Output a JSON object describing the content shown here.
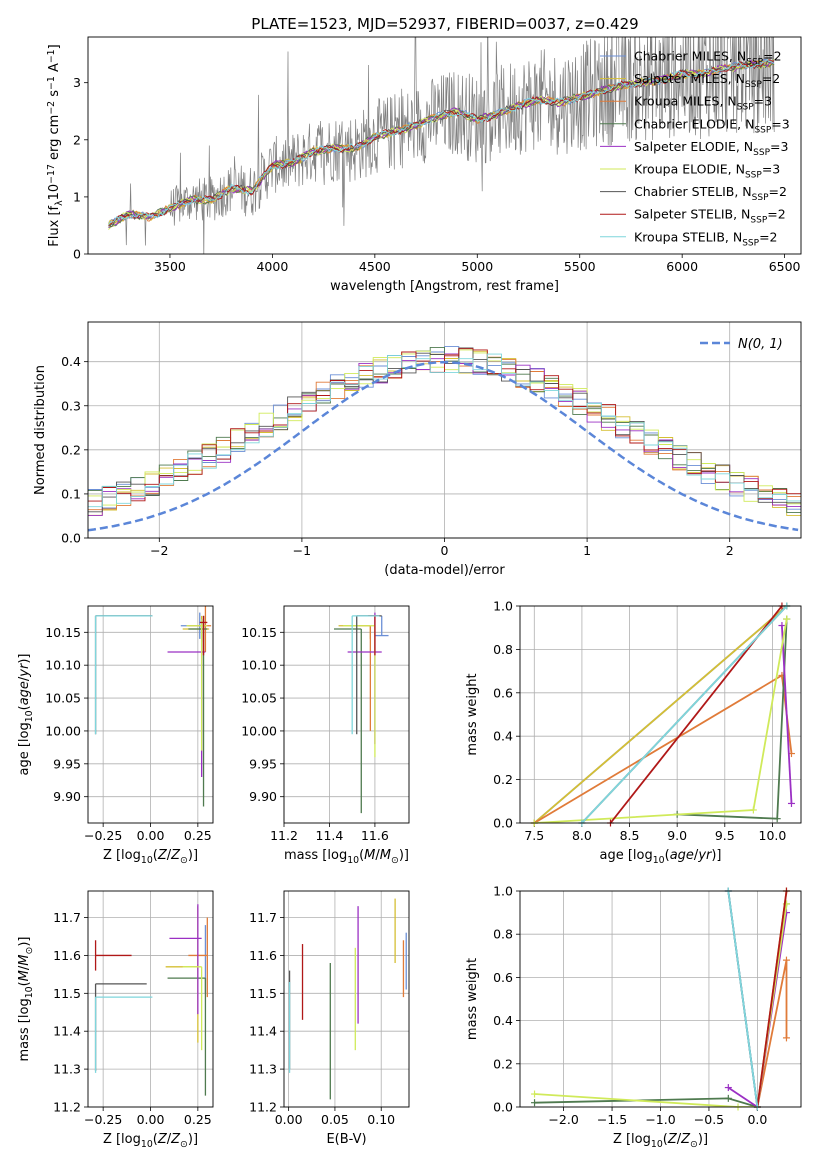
{
  "title": "PLATE=1523, MJD=52937, FIBERID=0037, z=0.429",
  "series": [
    {
      "name": "Chabrier MILES, N<sub>SSP</sub>=2",
      "color": "#6b8fd6"
    },
    {
      "name": "Salpeter MILES, N<sub>SSP</sub>=2",
      "color": "#d5bf34"
    },
    {
      "name": "Kroupa MILES, N<sub>SSP</sub>=3",
      "color": "#e07b39"
    },
    {
      "name": "Chabrier ELODIE, N<sub>SSP</sub>=3",
      "color": "#4f7a4f"
    },
    {
      "name": "Salpeter ELODIE, N<sub>SSP</sub>=3",
      "color": "#9b30c4"
    },
    {
      "name": "Kroupa ELODIE, N<sub>SSP</sub>=3",
      "color": "#d0ea5a"
    },
    {
      "name": "Chabrier STELIB, N<sub>SSP</sub>=2",
      "color": "#555555"
    },
    {
      "name": "Salpeter STELIB, N<sub>SSP</sub>=2",
      "color": "#b01818"
    },
    {
      "name": "Kroupa STELIB, N<sub>SSP</sub>=2",
      "color": "#7fd6dc"
    }
  ],
  "chart_data": [
    {
      "id": "spectrum",
      "type": "line",
      "xlabel": "wavelength [Angstrom, rest frame]",
      "ylabel": "Flux [f<sub>λ</sub>10<sup>−17</sup> erg cm<sup>−2</sup> s<sup>−1</sup> A<sup>−1</sup>]",
      "xlim": [
        3100,
        6580
      ],
      "ylim": [
        0,
        3.8
      ],
      "xticks": [
        3500,
        4000,
        4500,
        5000,
        5500,
        6000,
        6500
      ],
      "yticks": [
        0,
        1,
        2,
        3
      ],
      "continuum_x": [
        3200,
        3300,
        3400,
        3500,
        3600,
        3700,
        3800,
        3900,
        4000,
        4100,
        4200,
        4300,
        4400,
        4500,
        4600,
        4700,
        4800,
        4900,
        5000,
        5100,
        5200,
        5300,
        5400,
        5500,
        5600,
        5700,
        5800,
        5900,
        6000,
        6100,
        6200,
        6300,
        6450
      ],
      "continuum_y": [
        0.5,
        0.7,
        0.65,
        0.8,
        0.95,
        0.95,
        1.15,
        1.1,
        1.55,
        1.6,
        1.8,
        1.85,
        1.85,
        2.05,
        2.15,
        2.25,
        2.4,
        2.5,
        2.35,
        2.45,
        2.6,
        2.7,
        2.65,
        2.75,
        2.85,
        2.95,
        3.0,
        3.05,
        3.15,
        3.15,
        3.25,
        3.3,
        3.35
      ],
      "legend": "upper right"
    },
    {
      "id": "residuals",
      "type": "line",
      "xlabel": "(data-model)/error",
      "ylabel": "Normed distribution",
      "xlim": [
        -2.5,
        2.5
      ],
      "ylim": [
        0,
        0.49
      ],
      "xticks": [
        -2,
        -1,
        0,
        1,
        2
      ],
      "yticks": [
        0.0,
        0.1,
        0.2,
        0.3,
        0.4
      ],
      "legend": "$\\mathcal{N}(0, 1)$",
      "gaussian": {
        "mean": 0,
        "sigma": 1,
        "color": "#5b86d8",
        "style": "dashed"
      },
      "histogram_bin_width": 0.1
    },
    {
      "id": "age_vs_Z",
      "type": "scatter",
      "xlabel": "Z [log<sub>10</sub>(<i>Z</i>/<i>Z</i><sub>⊙</sub>)]",
      "ylabel": "age  [log<sub>10</sub>(<i>age</i>/<i>yr</i>)]",
      "xlim": [
        -0.33,
        0.33
      ],
      "ylim": [
        9.86,
        10.19
      ],
      "xticks": [
        -0.25,
        0.0,
        0.25
      ],
      "yticks": [
        9.9,
        9.95,
        10.0,
        10.05,
        10.1,
        10.15
      ],
      "points": [
        {
          "x": 0.26,
          "y": 10.16,
          "xerr": [
            0.1,
            0.04
          ],
          "yerr": [
            0.02,
            0.02
          ],
          "series": 0
        },
        {
          "x": 0.27,
          "y": 10.155,
          "xerr": [
            0.1,
            0.04
          ],
          "yerr": [
            0.02,
            0.02
          ],
          "series": 1
        },
        {
          "x": 0.29,
          "y": 10.16,
          "xerr": [
            0.09,
            0.03
          ],
          "yerr": [
            0.04,
            0.06
          ],
          "series": 2
        },
        {
          "x": 0.28,
          "y": 10.155,
          "xerr": [
            0.08,
            0.02
          ],
          "yerr": [
            0.27,
            0.02
          ],
          "series": 3
        },
        {
          "x": 0.27,
          "y": 10.12,
          "xerr": [
            0.18,
            0.02
          ],
          "yerr": [
            0.19,
            0.05
          ],
          "series": 4
        },
        {
          "x": 0.27,
          "y": 10.16,
          "xerr": [
            0.08,
            0.03
          ],
          "yerr": [
            0.19,
            0.01
          ],
          "series": 5
        },
        {
          "x": -0.29,
          "y": 10.175,
          "xerr": [
            0.0,
            0.3
          ],
          "yerr": [
            0.18,
            0.0
          ],
          "series": 6
        },
        {
          "x": 0.28,
          "y": 10.165,
          "xerr": [
            0.02,
            0.02
          ],
          "yerr": [
            0.05,
            0.01
          ],
          "series": 7
        },
        {
          "x": -0.29,
          "y": 10.175,
          "xerr": [
            0.0,
            0.3
          ],
          "yerr": [
            0.18,
            0.0
          ],
          "series": 8
        }
      ]
    },
    {
      "id": "age_vs_mass",
      "type": "scatter",
      "xlabel": "mass [log<sub>10</sub>(<i>M</i>/<i>M</i><sub>⊙</sub>)]",
      "ylabel": "",
      "xlim": [
        11.2,
        11.75
      ],
      "ylim": [
        9.86,
        10.19
      ],
      "xticks": [
        11.2,
        11.4,
        11.6
      ],
      "yticks": [
        9.9,
        9.95,
        10.0,
        10.05,
        10.1,
        10.15
      ],
      "points": [
        {
          "x": 11.63,
          "y": 10.145,
          "xerr": [
            0.03,
            0.03
          ],
          "yerr": [
            0.0,
            0.03
          ],
          "series": 0
        },
        {
          "x": 11.58,
          "y": 10.16,
          "xerr": [
            0.14,
            0.0
          ],
          "yerr": [
            0.02,
            0.0
          ],
          "series": 1
        },
        {
          "x": 11.58,
          "y": 10.16,
          "xerr": [
            0.05,
            0.0
          ],
          "yerr": [
            0.16,
            0.0
          ],
          "series": 2
        },
        {
          "x": 11.54,
          "y": 10.155,
          "xerr": [
            0.12,
            0.0
          ],
          "yerr": [
            0.28,
            0.0
          ],
          "series": 3
        },
        {
          "x": 11.6,
          "y": 10.12,
          "xerr": [
            0.12,
            0.03
          ],
          "yerr": [
            0.14,
            0.06
          ],
          "series": 4
        },
        {
          "x": 11.6,
          "y": 10.16,
          "xerr": [
            0.14,
            0.0
          ],
          "yerr": [
            0.2,
            0.0
          ],
          "series": 5
        },
        {
          "x": 11.52,
          "y": 10.175,
          "xerr": [
            0.0,
            0.11
          ],
          "yerr": [
            0.18,
            0.0
          ],
          "series": 6
        },
        {
          "x": 11.6,
          "y": 10.175,
          "xerr": [
            0.03,
            0.02
          ],
          "yerr": [
            0.06,
            0.0
          ],
          "series": 7
        },
        {
          "x": 11.5,
          "y": 10.175,
          "xerr": [
            0.0,
            0.12
          ],
          "yerr": [
            0.18,
            0.0
          ],
          "series": 8
        }
      ]
    },
    {
      "id": "massweight_vs_age",
      "type": "line",
      "xlabel": "age  [log<sub>10</sub>(<i>age</i>/<i>yr</i>)]",
      "ylabel": "mass weight",
      "xlim": [
        7.35,
        10.3
      ],
      "ylim": [
        0.0,
        1.0
      ],
      "xticks": [
        7.5,
        8.0,
        8.5,
        9.0,
        9.5,
        10.0
      ],
      "yticks": [
        0.0,
        0.2,
        0.4,
        0.6,
        0.8,
        1.0
      ],
      "lines": [
        {
          "series": 0,
          "x": [
            7.5,
            10.15
          ],
          "y": [
            0.0,
            1.0
          ]
        },
        {
          "series": 1,
          "x": [
            7.5,
            10.15
          ],
          "y": [
            0.0,
            1.0
          ]
        },
        {
          "series": 2,
          "x": [
            7.5,
            10.1,
            10.2
          ],
          "y": [
            0.0,
            0.68,
            0.32
          ]
        },
        {
          "series": 3,
          "x": [
            9.0,
            10.05,
            10.15
          ],
          "y": [
            0.04,
            0.02,
            0.94
          ]
        },
        {
          "series": 4,
          "x": [
            10.1,
            10.2
          ],
          "y": [
            0.91,
            0.09
          ]
        },
        {
          "series": 5,
          "x": [
            7.5,
            9.8,
            10.15
          ],
          "y": [
            0.0,
            0.06,
            0.94
          ]
        },
        {
          "series": 6,
          "x": [
            8.0,
            10.15
          ],
          "y": [
            0.0,
            1.0
          ]
        },
        {
          "series": 7,
          "x": [
            8.3,
            10.1
          ],
          "y": [
            0.0,
            1.0
          ]
        },
        {
          "series": 8,
          "x": [
            8.0,
            10.15
          ],
          "y": [
            0.0,
            1.0
          ]
        }
      ]
    },
    {
      "id": "mass_vs_Z",
      "type": "scatter",
      "xlabel": "Z [log<sub>10</sub>(<i>Z</i>/<i>Z</i><sub>⊙</sub>)]",
      "ylabel": "mass [log<sub>10</sub>(<i>M</i>/<i>M</i><sub>⊙</sub>)]",
      "xlim": [
        -0.33,
        0.33
      ],
      "ylim": [
        11.2,
        11.77
      ],
      "xticks": [
        -0.25,
        0.0,
        0.25
      ],
      "yticks": [
        11.2,
        11.3,
        11.4,
        11.5,
        11.6,
        11.7
      ],
      "points": [
        {
          "x": 0.29,
          "y": 11.59,
          "xerr": [
            0.0,
            0.0
          ],
          "yerr": [
            0.09,
            0.09
          ],
          "series": 0
        },
        {
          "x": 0.25,
          "y": 11.57,
          "xerr": [
            0.17,
            0.0
          ],
          "yerr": [
            0.2,
            0.16
          ],
          "series": 1
        },
        {
          "x": 0.3,
          "y": 11.6,
          "xerr": [
            0.1,
            0.0
          ],
          "yerr": [
            0.11,
            0.1
          ],
          "series": 2
        },
        {
          "x": 0.29,
          "y": 11.54,
          "xerr": [
            0.2,
            0.0
          ],
          "yerr": [
            0.31,
            0.0
          ],
          "series": 3
        },
        {
          "x": 0.25,
          "y": 11.645,
          "xerr": [
            0.15,
            0.02
          ],
          "yerr": [
            0.2,
            0.09
          ],
          "series": 4
        },
        {
          "x": 0.27,
          "y": 11.57,
          "xerr": [
            0.1,
            0.0
          ],
          "yerr": [
            0.22,
            0.0
          ],
          "series": 5
        },
        {
          "x": -0.29,
          "y": 11.525,
          "xerr": [
            0.0,
            0.27
          ],
          "yerr": [
            0.23,
            0.0
          ],
          "series": 6
        },
        {
          "x": -0.29,
          "y": 11.6,
          "xerr": [
            0.0,
            0.19
          ],
          "yerr": [
            0.04,
            0.04
          ],
          "series": 7
        },
        {
          "x": -0.29,
          "y": 11.49,
          "xerr": [
            0.0,
            0.3
          ],
          "yerr": [
            0.2,
            0.0
          ],
          "series": 8
        }
      ]
    },
    {
      "id": "mass_vs_EBV",
      "type": "scatter",
      "xlabel": "E(B-V)",
      "ylabel": "",
      "xlim": [
        -0.005,
        0.13
      ],
      "ylim": [
        11.2,
        11.77
      ],
      "xticks": [
        0.0,
        0.05,
        0.1
      ],
      "yticks": [
        11.2,
        11.3,
        11.4,
        11.5,
        11.6,
        11.7
      ],
      "points": [
        {
          "x": 0.127,
          "y": 11.56,
          "xerr": [
            0.0,
            0.0
          ],
          "yerr": [
            0.05,
            0.1
          ],
          "series": 0
        },
        {
          "x": 0.115,
          "y": 11.66,
          "xerr": [
            0.0,
            0.0
          ],
          "yerr": [
            0.08,
            0.09
          ],
          "series": 1
        },
        {
          "x": 0.124,
          "y": 11.55,
          "xerr": [
            0.0,
            0.0
          ],
          "yerr": [
            0.06,
            0.09
          ],
          "series": 2
        },
        {
          "x": 0.045,
          "y": 11.4,
          "xerr": [
            0.0,
            0.0
          ],
          "yerr": [
            0.18,
            0.18
          ],
          "series": 3
        },
        {
          "x": 0.075,
          "y": 11.57,
          "xerr": [
            0.0,
            0.0
          ],
          "yerr": [
            0.15,
            0.16
          ],
          "series": 4
        },
        {
          "x": 0.072,
          "y": 11.49,
          "xerr": [
            0.0,
            0.0
          ],
          "yerr": [
            0.14,
            0.13
          ],
          "series": 5
        },
        {
          "x": 0.001,
          "y": 11.45,
          "xerr": [
            0.0,
            0.0
          ],
          "yerr": [
            0.15,
            0.11
          ],
          "series": 6
        },
        {
          "x": 0.015,
          "y": 11.53,
          "xerr": [
            0.0,
            0.0
          ],
          "yerr": [
            0.1,
            0.1
          ],
          "series": 7
        },
        {
          "x": 0.001,
          "y": 11.42,
          "xerr": [
            0.0,
            0.0
          ],
          "yerr": [
            0.13,
            0.11
          ],
          "series": 8
        }
      ]
    },
    {
      "id": "massweight_vs_Z",
      "type": "line",
      "xlabel": "Z [log<sub>10</sub>(<i>Z</i>/<i>Z</i><sub>⊙</sub>)]",
      "ylabel": "mass weight",
      "xlim": [
        -2.45,
        0.45
      ],
      "ylim": [
        0.0,
        1.0
      ],
      "xticks": [
        -2.0,
        -1.5,
        -1.0,
        -0.5,
        0.0
      ],
      "yticks": [
        0.0,
        0.2,
        0.4,
        0.6,
        0.8,
        1.0
      ],
      "lines": [
        {
          "series": 0,
          "x": [
            -0.3,
            0.0
          ],
          "y": [
            1.0,
            0.0
          ]
        },
        {
          "series": 1,
          "x": [
            0.0,
            0.3
          ],
          "y": [
            0.0,
            1.0
          ]
        },
        {
          "series": 2,
          "x": [
            0.0,
            0.3,
            0.3
          ],
          "y": [
            0.0,
            0.68,
            0.32
          ]
        },
        {
          "series": 3,
          "x": [
            -2.3,
            -0.3,
            0.0,
            0.3
          ],
          "y": [
            0.02,
            0.04,
            0.0,
            0.94
          ]
        },
        {
          "series": 4,
          "x": [
            -0.3,
            0.0,
            0.3
          ],
          "y": [
            0.09,
            0.0,
            0.9
          ]
        },
        {
          "series": 5,
          "x": [
            -2.3,
            -0.2,
            0.0,
            0.3
          ],
          "y": [
            0.06,
            0.0,
            0.0,
            0.94
          ]
        },
        {
          "series": 6,
          "x": [
            -0.3,
            0.0
          ],
          "y": [
            1.0,
            0.0
          ]
        },
        {
          "series": 7,
          "x": [
            0.0,
            0.3
          ],
          "y": [
            0.0,
            1.0
          ]
        },
        {
          "series": 8,
          "x": [
            -0.3,
            0.0
          ],
          "y": [
            1.0,
            0.0
          ]
        }
      ]
    }
  ]
}
